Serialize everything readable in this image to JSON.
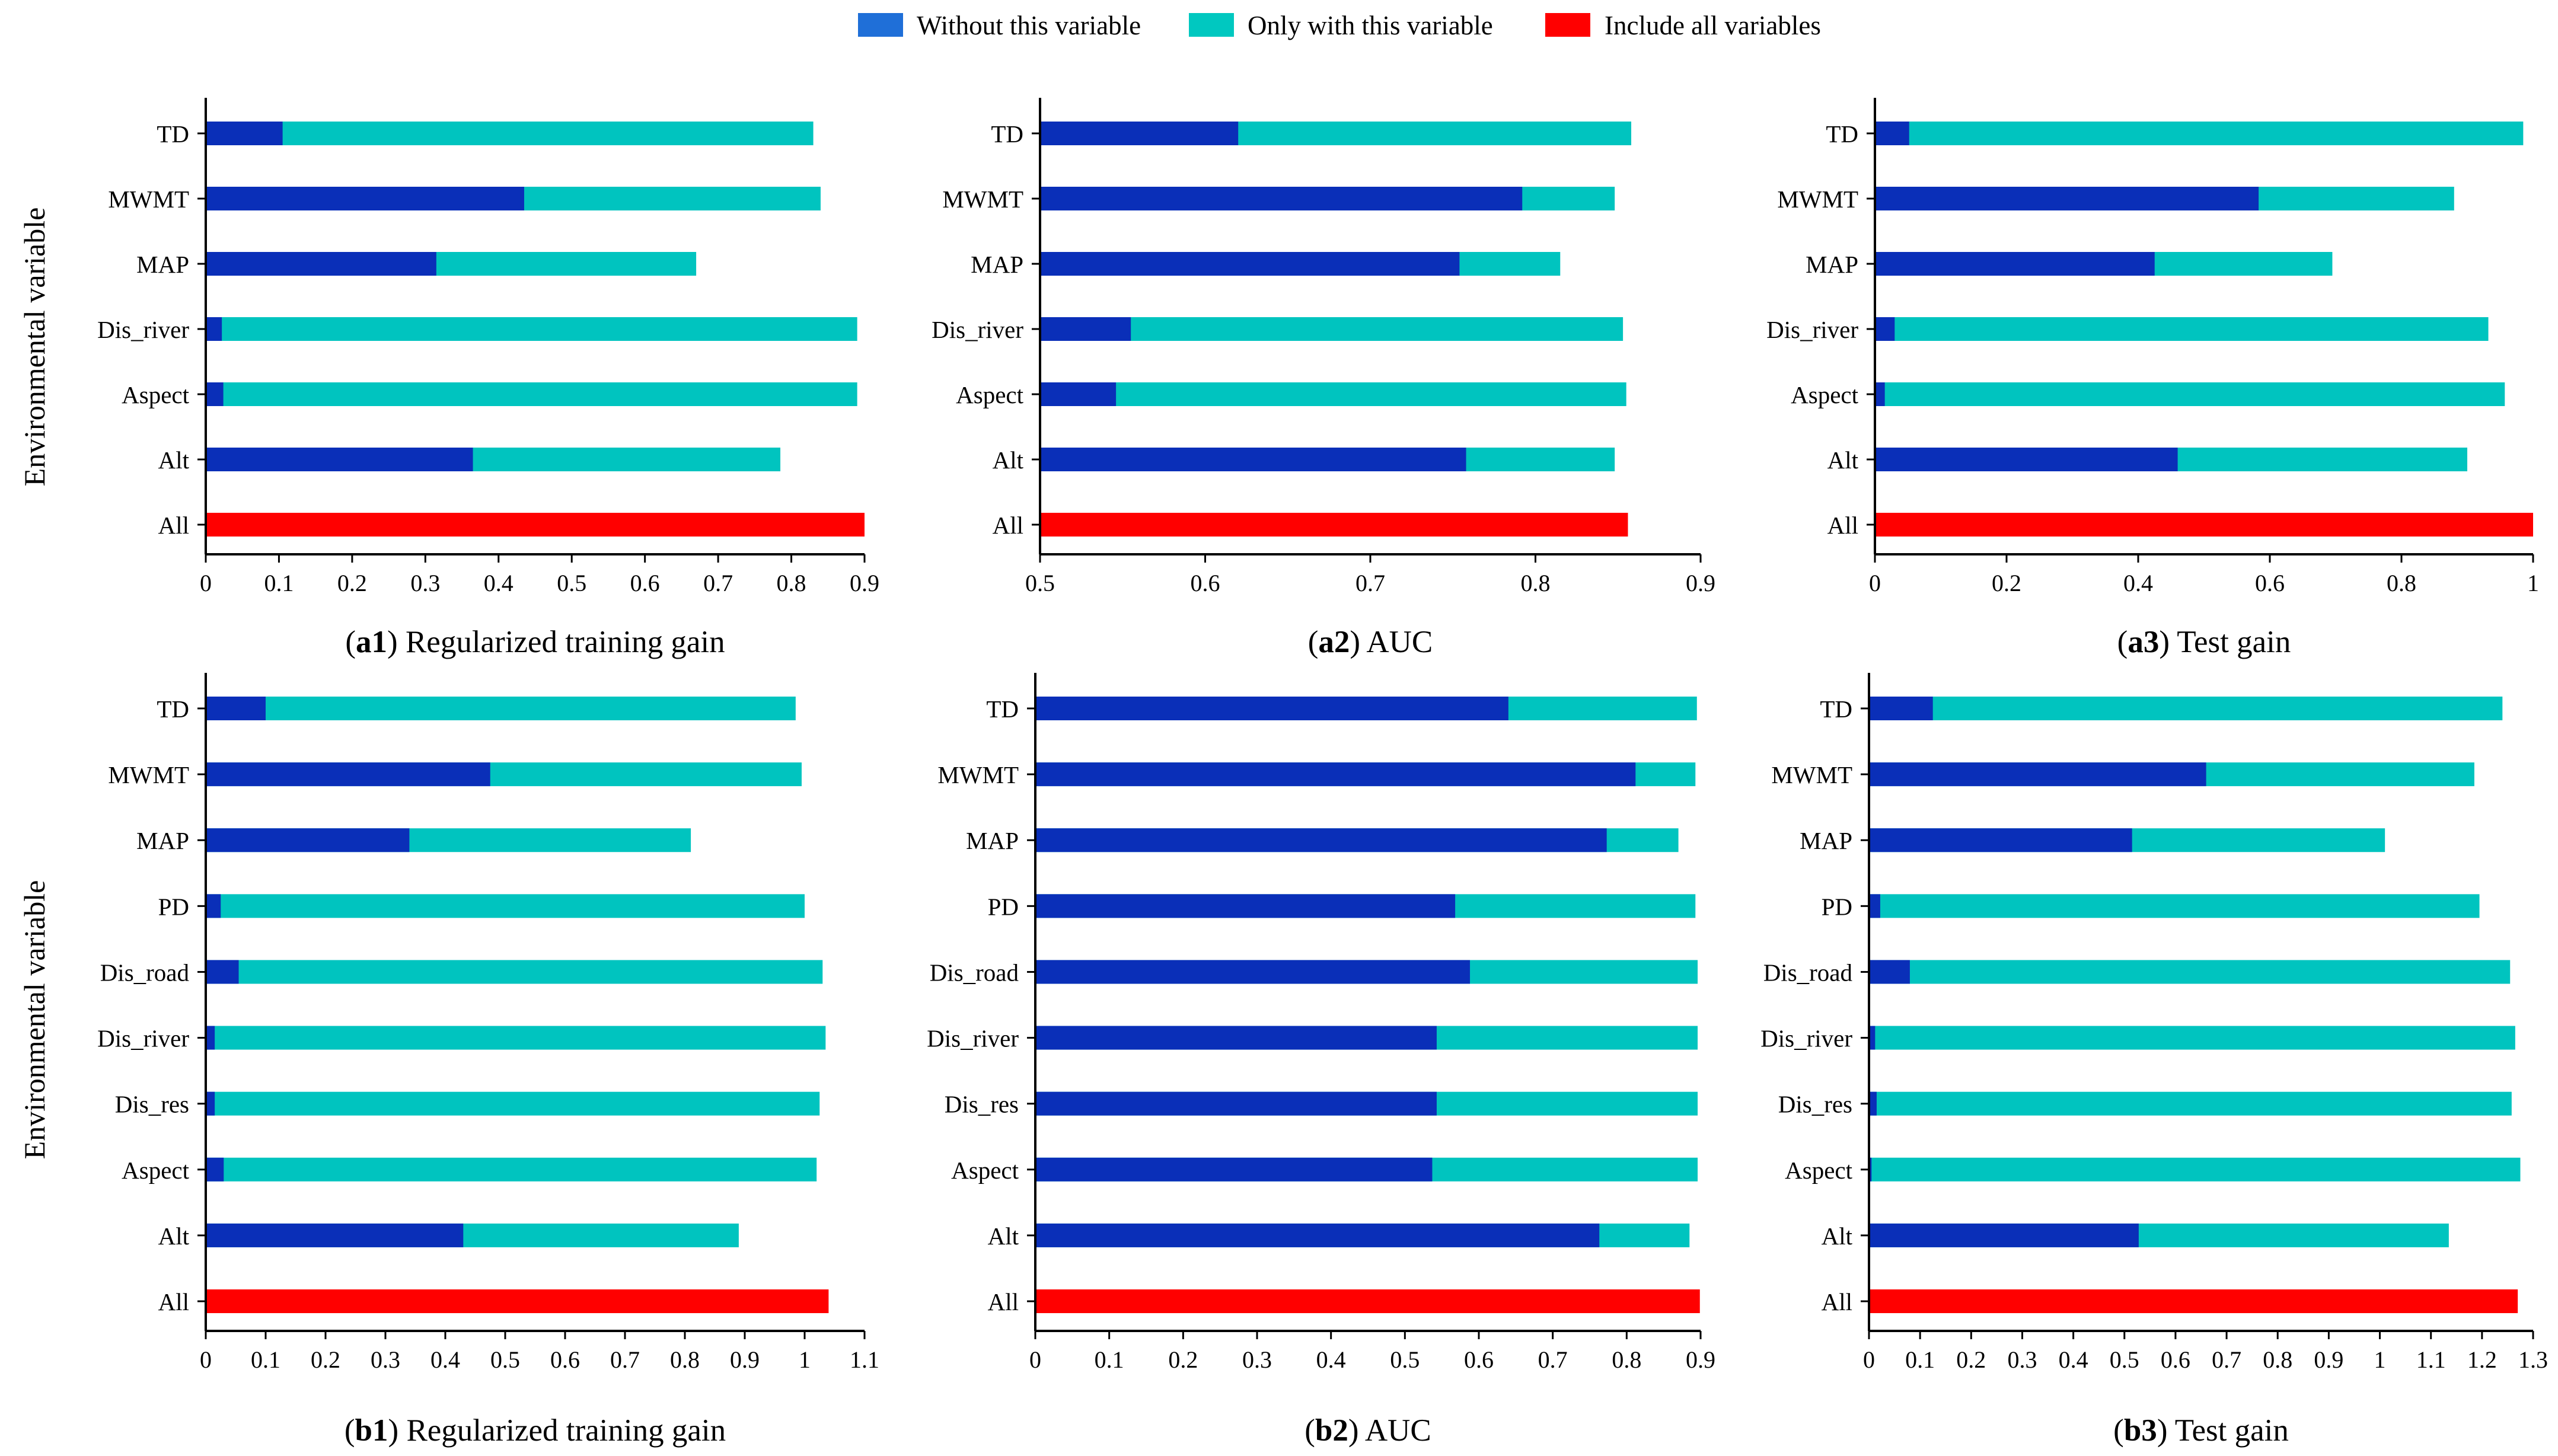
{
  "legend": {
    "items": [
      {
        "label": "Without this variable",
        "color": "#1f6fd8"
      },
      {
        "label": "Only with this variable",
        "color": "#00c8c0"
      },
      {
        "label": "Include all variables",
        "color": "#ff0000"
      }
    ]
  },
  "colors": {
    "without_bar": "#0a2fb8",
    "only_bar": "#00c4bf",
    "all_bar": "#ff0000",
    "axis": "#000000"
  },
  "ylabels": {
    "top": "Environmental variable",
    "bottom": "Environmental variable"
  },
  "chart_data": [
    {
      "id": "a1",
      "type": "bar",
      "orientation": "horizontal",
      "caption_bold": "a1",
      "caption": "Regularized training gain",
      "categories": [
        "TD",
        "MWMT",
        "MAP",
        "Dis_river",
        "Aspect",
        "Alt",
        "All"
      ],
      "series": [
        {
          "name": "Only with this variable",
          "values": [
            0.83,
            0.84,
            0.67,
            0.89,
            0.89,
            0.785,
            null
          ]
        },
        {
          "name": "Without this variable",
          "values": [
            0.105,
            0.435,
            0.315,
            0.022,
            0.024,
            0.365,
            null
          ]
        },
        {
          "name": "Include all variables",
          "values": [
            null,
            null,
            null,
            null,
            null,
            null,
            0.9
          ]
        }
      ],
      "xlim": [
        0,
        0.9
      ],
      "xticks": [
        "0",
        "0.1",
        "0.2",
        "0.3",
        "0.4",
        "0.5",
        "0.6",
        "0.7",
        "0.8",
        "0.9"
      ]
    },
    {
      "id": "a2",
      "type": "bar",
      "orientation": "horizontal",
      "caption_bold": "a2",
      "caption": "AUC",
      "categories": [
        "TD",
        "MWMT",
        "MAP",
        "Dis_river",
        "Aspect",
        "Alt",
        "All"
      ],
      "series": [
        {
          "name": "Only with this variable",
          "values": [
            0.858,
            0.848,
            0.815,
            0.853,
            0.855,
            0.848,
            null
          ]
        },
        {
          "name": "Without this variable",
          "values": [
            0.62,
            0.792,
            0.754,
            0.555,
            0.546,
            0.758,
            null
          ]
        },
        {
          "name": "Include all variables",
          "values": [
            null,
            null,
            null,
            null,
            null,
            null,
            0.856
          ]
        }
      ],
      "xlim": [
        0.5,
        0.9
      ],
      "xticks": [
        "0.5",
        "0.6",
        "0.7",
        "0.8",
        "0.9"
      ]
    },
    {
      "id": "a3",
      "type": "bar",
      "orientation": "horizontal",
      "caption_bold": "a3",
      "caption": "Test gain",
      "categories": [
        "TD",
        "MWMT",
        "MAP",
        "Dis_river",
        "Aspect",
        "Alt",
        "All"
      ],
      "series": [
        {
          "name": "Only with this variable",
          "values": [
            0.985,
            0.88,
            0.695,
            0.932,
            0.957,
            0.9,
            null
          ]
        },
        {
          "name": "Without this variable",
          "values": [
            0.052,
            0.583,
            0.425,
            0.03,
            0.015,
            0.46,
            null
          ]
        },
        {
          "name": "Include all variables",
          "values": [
            null,
            null,
            null,
            null,
            null,
            null,
            1.0
          ]
        }
      ],
      "xlim": [
        0,
        1
      ],
      "xticks": [
        "0",
        "0.2",
        "0.4",
        "0.6",
        "0.8",
        "1"
      ]
    },
    {
      "id": "b1",
      "type": "bar",
      "orientation": "horizontal",
      "caption_bold": "b1",
      "caption": "Regularized training gain",
      "categories": [
        "TD",
        "MWMT",
        "MAP",
        "PD",
        "Dis_road",
        "Dis_river",
        "Dis_res",
        "Aspect",
        "Alt",
        "All"
      ],
      "series": [
        {
          "name": "Only with this variable",
          "values": [
            0.985,
            0.995,
            0.81,
            1.0,
            1.03,
            1.035,
            1.025,
            1.02,
            0.89,
            null
          ]
        },
        {
          "name": "Without this variable",
          "values": [
            0.1,
            0.475,
            0.34,
            0.025,
            0.055,
            0.015,
            0.015,
            0.03,
            0.43,
            null
          ]
        },
        {
          "name": "Include all variables",
          "values": [
            null,
            null,
            null,
            null,
            null,
            null,
            null,
            null,
            null,
            1.04
          ]
        }
      ],
      "xlim": [
        0,
        1.1
      ],
      "xticks": [
        "0",
        "0.1",
        "0.2",
        "0.3",
        "0.4",
        "0.5",
        "0.6",
        "0.7",
        "0.8",
        "0.9",
        "1",
        "1.1"
      ]
    },
    {
      "id": "b2",
      "type": "bar",
      "orientation": "horizontal",
      "caption_bold": "b2",
      "caption": "AUC",
      "categories": [
        "TD",
        "MWMT",
        "MAP",
        "PD",
        "Dis_road",
        "Dis_river",
        "Dis_res",
        "Aspect",
        "Alt",
        "All"
      ],
      "series": [
        {
          "name": "Only with this variable",
          "values": [
            0.895,
            0.893,
            0.87,
            0.893,
            0.896,
            0.896,
            0.896,
            0.896,
            0.885,
            null
          ]
        },
        {
          "name": "Without this variable",
          "values": [
            0.64,
            0.812,
            0.773,
            0.568,
            0.588,
            0.543,
            0.543,
            0.537,
            0.763,
            null
          ]
        },
        {
          "name": "Include all variables",
          "values": [
            null,
            null,
            null,
            null,
            null,
            null,
            null,
            null,
            null,
            0.899
          ]
        }
      ],
      "xlim": [
        0,
        0.9
      ],
      "xticks": [
        "0",
        "0.1",
        "0.2",
        "0.3",
        "0.4",
        "0.5",
        "0.6",
        "0.7",
        "0.8",
        "0.9"
      ]
    },
    {
      "id": "b3",
      "type": "bar",
      "orientation": "horizontal",
      "caption_bold": "b3",
      "caption": "Test gain",
      "categories": [
        "TD",
        "MWMT",
        "MAP",
        "PD",
        "Dis_road",
        "Dis_river",
        "Dis_res",
        "Aspect",
        "Alt",
        "All"
      ],
      "series": [
        {
          "name": "Only with this variable",
          "values": [
            1.24,
            1.185,
            1.01,
            1.195,
            1.255,
            1.265,
            1.258,
            1.275,
            1.135,
            null
          ]
        },
        {
          "name": "Without this variable",
          "values": [
            0.125,
            0.66,
            0.515,
            0.022,
            0.08,
            0.012,
            0.015,
            0.005,
            0.528,
            null
          ]
        },
        {
          "name": "Include all variables",
          "values": [
            null,
            null,
            null,
            null,
            null,
            null,
            null,
            null,
            null,
            1.27
          ]
        }
      ],
      "xlim": [
        0,
        1.3
      ],
      "xticks": [
        "0",
        "0.1",
        "0.2",
        "0.3",
        "0.4",
        "0.5",
        "0.6",
        "0.7",
        "0.8",
        "0.9",
        "1",
        "1.1",
        "1.2",
        "1.3"
      ]
    }
  ]
}
